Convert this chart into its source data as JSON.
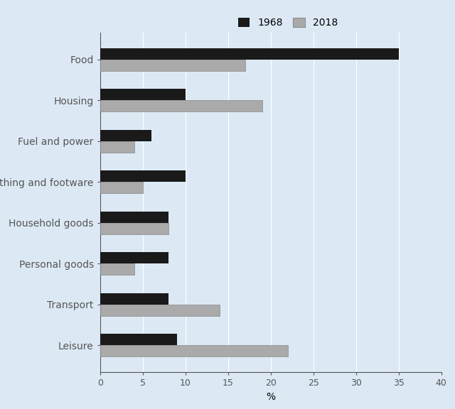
{
  "categories": [
    "Food",
    "Housing",
    "Fuel and power",
    "Clothing and footware",
    "Household goods",
    "Personal goods",
    "Transport",
    "Leisure"
  ],
  "values_1968": [
    35,
    10,
    6,
    10,
    8,
    8,
    8,
    9
  ],
  "values_2018": [
    17,
    19,
    4,
    5,
    8,
    4,
    14,
    22
  ],
  "color_1968": "#1a1a1a",
  "color_2018": "#aaaaaa",
  "color_2018_edge": "#888888",
  "xlabel": "%",
  "xlim": [
    0,
    40
  ],
  "xticks": [
    0,
    5,
    10,
    15,
    20,
    25,
    30,
    35,
    40
  ],
  "background_color": "#dce9f5",
  "legend_labels": [
    "1968",
    "2018"
  ],
  "bar_height": 0.28,
  "grid_color": "#ffffff",
  "spine_color": "#555555",
  "tick_fontsize": 9,
  "label_fontsize": 10,
  "legend_fontsize": 10
}
